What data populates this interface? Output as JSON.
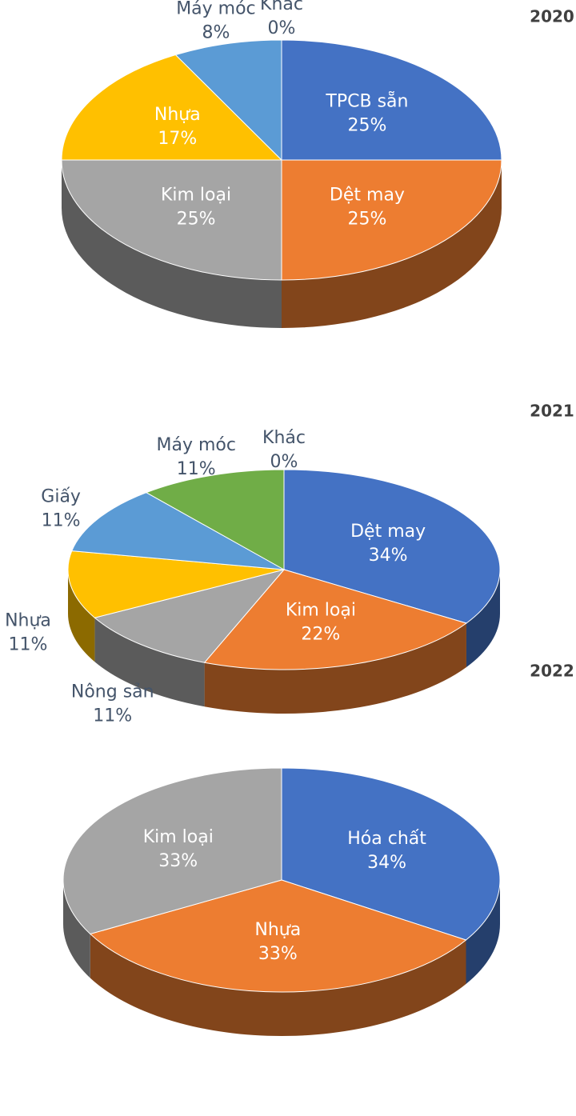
{
  "chart_data": [
    {
      "type": "pie",
      "title": "2020",
      "categories": [
        "TPCB sẵn",
        "Dệt may",
        "Kim loại",
        "Nhựa",
        "Máy móc",
        "Khác"
      ],
      "values": [
        25,
        25,
        25,
        17,
        8,
        0
      ],
      "value_labels": [
        "25%",
        "25%",
        "25%",
        "17%",
        "8%",
        "0%"
      ],
      "colors": [
        "#4472c4",
        "#ed7d31",
        "#a5a5a5",
        "#ffc000",
        "#5b9bd5",
        "#70ad47"
      ]
    },
    {
      "type": "pie",
      "title": "2021",
      "categories": [
        "Dệt may",
        "Kim loại",
        "Nông sản",
        "Nhựa",
        "Giấy",
        "Máy móc",
        "Khác"
      ],
      "values": [
        34,
        22,
        11,
        11,
        11,
        11,
        0
      ],
      "value_labels": [
        "34%",
        "22%",
        "11%",
        "11%",
        "11%",
        "11%",
        "0%"
      ],
      "colors": [
        "#4472c4",
        "#ed7d31",
        "#a5a5a5",
        "#ffc000",
        "#5b9bd5",
        "#70ad47",
        "#264478"
      ]
    },
    {
      "type": "pie",
      "title": "2022",
      "categories": [
        "Hóa chất",
        "Nhựa",
        "Kim loại"
      ],
      "values": [
        34,
        33,
        33
      ],
      "value_labels": [
        "34%",
        "33%",
        "33%"
      ],
      "colors": [
        "#4472c4",
        "#ed7d31",
        "#a5a5a5"
      ]
    }
  ]
}
